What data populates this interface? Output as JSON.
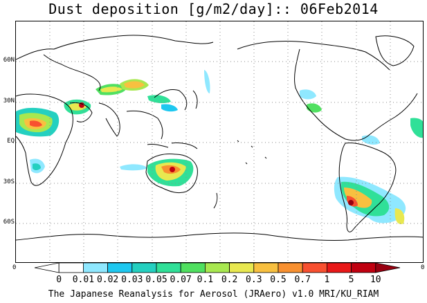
{
  "title": "Dust deposition [g/m2/day]:: 06Feb2014",
  "footer": "The Japanese Reanalysis for Aerosol (JRAero) v1.0 MRI/KU_RIAM",
  "lat_labels": [
    {
      "text": "60N",
      "lat": 60
    },
    {
      "text": "30N",
      "lat": 30
    },
    {
      "text": "EQ",
      "lat": 0
    },
    {
      "text": "30S",
      "lat": -30
    },
    {
      "text": "60S",
      "lat": -60
    }
  ],
  "edge_labels": {
    "left": "0",
    "right": "0"
  },
  "colorbar": {
    "labels": [
      "0",
      "0.01",
      "0.02",
      "0.03",
      "0.05",
      "0.07",
      "0.1",
      "0.2",
      "0.3",
      "0.5",
      "0.7",
      "1",
      "5",
      "10"
    ],
    "colors": [
      "#ffffff",
      "#ffffff",
      "#8fe8ff",
      "#1ec8f0",
      "#24d0c0",
      "#30e098",
      "#50e060",
      "#a8e850",
      "#e8e850",
      "#f8c040",
      "#f89030",
      "#f85030",
      "#e81818",
      "#c00010",
      "#980010"
    ]
  }
}
